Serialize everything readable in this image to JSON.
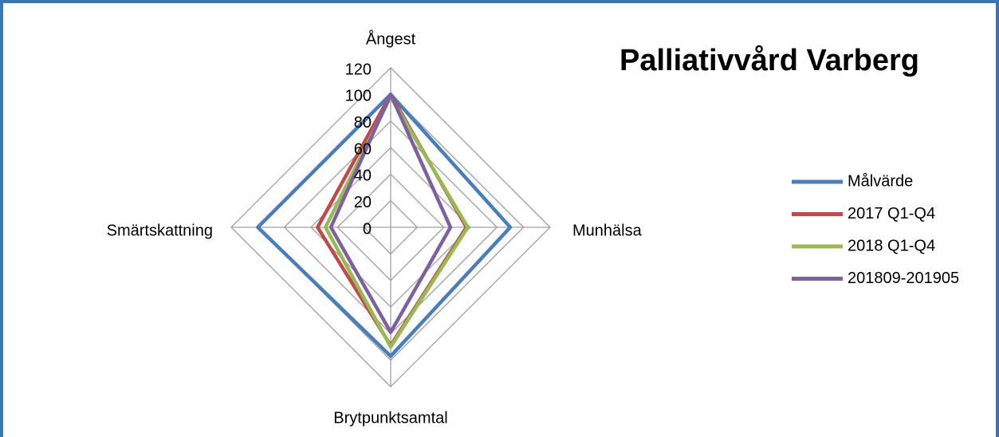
{
  "chart_data": {
    "type": "radar",
    "title": "Palliativvård Varberg",
    "categories": [
      "Ångest",
      "Munhälsa",
      "Brytpunktsamtal",
      "Smärtskattning"
    ],
    "series": [
      {
        "name": "Målvärde",
        "color": "#4a7ebb",
        "values": [
          100,
          90,
          97,
          100
        ]
      },
      {
        "name": "2017 Q1-Q4",
        "color": "#be4b48",
        "values": [
          100,
          57,
          89,
          55
        ]
      },
      {
        "name": "2018 Q1-Q4",
        "color": "#98b954",
        "values": [
          98,
          58,
          90,
          49
        ]
      },
      {
        "name": "201809-201905",
        "color": "#7d60a0",
        "values": [
          100,
          45,
          79,
          45
        ]
      }
    ],
    "rlim": [
      0,
      120
    ],
    "rticks": [
      0,
      20,
      40,
      60,
      80,
      100,
      120
    ],
    "grid": true,
    "legend": "right"
  }
}
